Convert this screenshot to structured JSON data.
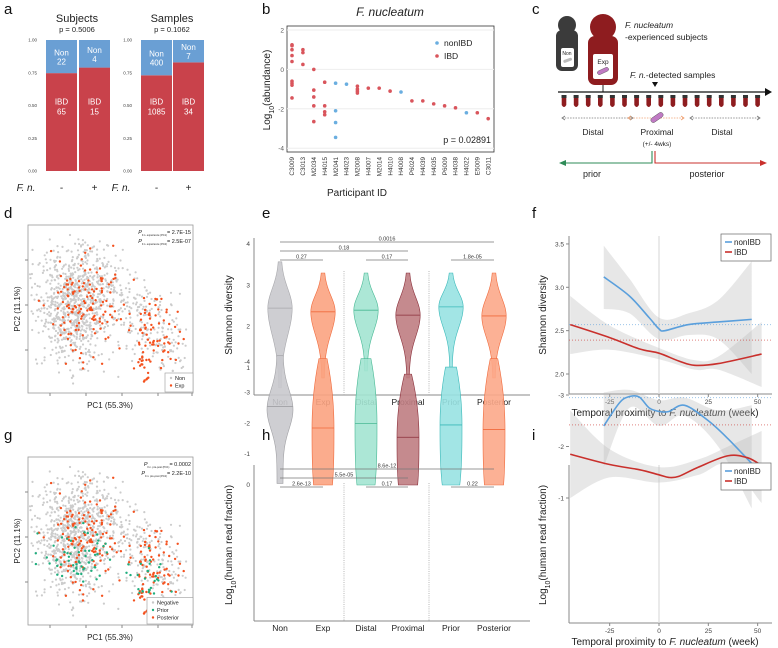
{
  "panel_labels": [
    "a",
    "b",
    "c",
    "d",
    "e",
    "f",
    "g",
    "h",
    "i"
  ],
  "chart_data": [
    {
      "panel": "a",
      "type": "bar",
      "stacked": true,
      "normalized": true,
      "yticks": [
        "0.00",
        "0.25",
        "0.50",
        "0.75",
        "1.00"
      ],
      "xlabel": "F. n.",
      "colors": {
        "Non": "#6a9fd4",
        "IBD": "#c9424b"
      },
      "groups": [
        {
          "title": "Subjects",
          "p": "p = 0.5006",
          "categories": [
            "-",
            "+"
          ],
          "series": [
            {
              "name": "Non",
              "values": [
                22,
                4
              ]
            },
            {
              "name": "IBD",
              "values": [
                65,
                15
              ]
            }
          ]
        },
        {
          "title": "Samples",
          "p": "p = 0.1062",
          "categories": [
            "-",
            "+"
          ],
          "series": [
            {
              "name": "Non",
              "values": [
                400,
                7
              ]
            },
            {
              "name": "IBD",
              "values": [
                1085,
                34
              ]
            }
          ]
        }
      ]
    },
    {
      "panel": "b",
      "type": "scatter",
      "title": "F. nucleatum",
      "xlabel": "Participant ID",
      "ylabel": "Log10(abundance)",
      "ylabel_base": "Log",
      "ylabel_sub": "10",
      "ylabel_rest": "(abundance)",
      "ylim": [
        -4.2,
        2.2
      ],
      "yticks": [
        "2",
        "0",
        "-2",
        "-4"
      ],
      "annotation": "p = 0.02891",
      "legend": [
        {
          "name": "nonIBD",
          "color": "#6aaee0"
        },
        {
          "name": "IBD",
          "color": "#d9555c"
        }
      ],
      "legend_position": "top-right",
      "categories": [
        "C3009",
        "C3013",
        "M2034",
        "H4015",
        "M2041",
        "H4023",
        "M2008",
        "H4007",
        "M2014",
        "H4010",
        "H4008",
        "P6024",
        "H4039",
        "H4035",
        "P6009",
        "H4038",
        "H4022",
        "E5009",
        "C3011"
      ],
      "points": [
        {
          "id": "C3009",
          "group": "IBD",
          "y": [
            1.25,
            1.2,
            1.0,
            0.7,
            0.4,
            -0.6,
            -0.7,
            -0.8,
            -1.45
          ]
        },
        {
          "id": "C3013",
          "group": "IBD",
          "y": [
            1.0,
            0.85,
            0.25
          ]
        },
        {
          "id": "M2034",
          "group": "IBD",
          "y": [
            0.0,
            -1.05,
            -1.4,
            -1.85,
            -2.65
          ]
        },
        {
          "id": "H4015",
          "group": "IBD",
          "y": [
            -0.65,
            -1.85,
            -2.15,
            -2.3
          ]
        },
        {
          "id": "M2041",
          "group": "nonIBD",
          "y": [
            -0.7,
            -2.1,
            -2.7,
            -3.45
          ]
        },
        {
          "id": "H4023",
          "group": "nonIBD",
          "y": [
            -0.75
          ]
        },
        {
          "id": "M2008",
          "group": "IBD",
          "y": [
            -0.85,
            -1.0,
            -1.1,
            -1.2
          ]
        },
        {
          "id": "H4007",
          "group": "IBD",
          "y": [
            -0.95
          ]
        },
        {
          "id": "M2014",
          "group": "IBD",
          "y": [
            -0.95
          ]
        },
        {
          "id": "H4010",
          "group": "IBD",
          "y": [
            -1.1
          ]
        },
        {
          "id": "H4008",
          "group": "nonIBD",
          "y": [
            -1.15
          ]
        },
        {
          "id": "P6024",
          "group": "IBD",
          "y": [
            -1.6
          ]
        },
        {
          "id": "H4039",
          "group": "IBD",
          "y": [
            -1.6
          ]
        },
        {
          "id": "H4035",
          "group": "IBD",
          "y": [
            -1.75
          ]
        },
        {
          "id": "P6009",
          "group": "IBD",
          "y": [
            -1.85
          ]
        },
        {
          "id": "H4038",
          "group": "IBD",
          "y": [
            -1.95
          ]
        },
        {
          "id": "H4022",
          "group": "nonIBD",
          "y": [
            -2.2
          ]
        },
        {
          "id": "E5009",
          "group": "IBD",
          "y": [
            -2.2
          ]
        },
        {
          "id": "C3011",
          "group": "IBD",
          "y": [
            -2.5
          ]
        }
      ]
    },
    {
      "panel": "d",
      "type": "scatter",
      "xlabel": "PC1 (55.3%)",
      "ylabel": "PC2 (11.1%)",
      "annotations": [
        {
          "p": "P",
          "sub": "F.n. experience (PC1)",
          "value": "= 2.7E-15"
        },
        {
          "p": "P",
          "sub": "F.n. experience (PC2)",
          "value": "= 2.5E-07"
        }
      ],
      "legend": [
        {
          "name": "Non",
          "color": "#c8c8c8"
        },
        {
          "name": "Exp",
          "color": "#f4511e"
        }
      ],
      "legend_position": "bottom-right"
    },
    {
      "panel": "e",
      "type": "violin",
      "ylabel": "Shannon diversity",
      "yticks": [
        "1",
        "2",
        "3",
        "4"
      ],
      "ylim": [
        0.4,
        4.1
      ],
      "categories": [
        "Non",
        "Exp",
        "Distal",
        "Proximal",
        "Prior",
        "Posterior"
      ],
      "violins": [
        {
          "name": "Non",
          "min": 0.52,
          "max": 3.57,
          "median": 2.45,
          "color": "#c9c9cd",
          "line": "#a8a8ac"
        },
        {
          "name": "Exp",
          "min": 0.76,
          "max": 3.3,
          "median": 2.36,
          "color": "#fba381",
          "line": "#f06a3c"
        },
        {
          "name": "Distal",
          "min": 0.93,
          "max": 3.3,
          "median": 2.4,
          "color": "#a3e4d1",
          "line": "#48b894"
        },
        {
          "name": "Proximal",
          "min": 0.76,
          "max": 3.3,
          "median": 2.28,
          "color": "#bf7d82",
          "line": "#8a2f3a"
        },
        {
          "name": "Prior",
          "min": 1.02,
          "max": 3.3,
          "median": 2.48,
          "color": "#98e2e2",
          "line": "#3ab9b9"
        },
        {
          "name": "Posterior",
          "min": 0.76,
          "max": 3.3,
          "median": 2.26,
          "color": "#fca88a",
          "line": "#f06a3c"
        }
      ],
      "comparisons": [
        {
          "from": "Non",
          "to": "Posterior",
          "label": "0.0016"
        },
        {
          "from": "Non",
          "to": "Proximal",
          "label": "0.18"
        },
        {
          "from": "Non",
          "to": "Exp",
          "label": "0.27"
        },
        {
          "from": "Distal",
          "to": "Proximal",
          "label": "0.17"
        },
        {
          "from": "Prior",
          "to": "Posterior",
          "label": "1.8e-05"
        }
      ]
    },
    {
      "panel": "f",
      "type": "line",
      "ylabel": "Shannon diversity",
      "xlabel_pre": "Temporal proximity to ",
      "xlabel_italic": "F. nucleatum",
      "xlabel_post": " (week)",
      "xticks": [
        -25,
        0,
        25,
        50
      ],
      "yticks": [
        2.0,
        2.5,
        3.0,
        3.5
      ],
      "ytick_labels": [
        "2.0",
        "2.5",
        "3.0",
        "3.5"
      ],
      "ylim": [
        1.9,
        3.6
      ],
      "xlim": [
        -48,
        56
      ],
      "legend_position": "top-right",
      "series": [
        {
          "name": "nonIBD",
          "color": "#5a9fdc",
          "reference": 2.57,
          "x": [
            -28,
            -15,
            -5,
            0,
            3,
            15,
            30,
            47
          ],
          "y": [
            3.12,
            2.9,
            2.65,
            2.52,
            2.5,
            2.57,
            2.6,
            2.63
          ],
          "band": {
            "x": [
              -28,
              -15,
              0,
              15,
              30,
              47
            ],
            "lo": [
              2.75,
              2.7,
              2.4,
              2.45,
              2.4,
              2.0
            ],
            "hi": [
              3.48,
              3.1,
              2.65,
              2.7,
              2.85,
              3.3
            ]
          }
        },
        {
          "name": "IBD",
          "color": "#c9302c",
          "reference": 2.39,
          "x": [
            -45,
            -25,
            -10,
            0,
            10,
            18,
            30,
            52
          ],
          "y": [
            2.57,
            2.42,
            2.29,
            2.24,
            2.15,
            2.1,
            2.12,
            2.23
          ],
          "band": {
            "x": [
              -45,
              -25,
              0,
              18,
              30,
              52
            ],
            "lo": [
              2.23,
              2.28,
              2.17,
              2.05,
              2.05,
              1.85
            ],
            "hi": [
              2.9,
              2.56,
              2.3,
              2.16,
              2.2,
              2.6
            ]
          }
        }
      ]
    },
    {
      "panel": "g",
      "type": "scatter",
      "xlabel": "PC1 (55.3%)",
      "ylabel": "PC2 (11.1%)",
      "annotations": [
        {
          "p": "P",
          "sub": "F.n. pre-post (PC1)",
          "value": "= 0.0002"
        },
        {
          "p": "P",
          "sub": "F.n. pre-post (PC2)",
          "value": "= 2.2E-10"
        }
      ],
      "legend": [
        {
          "name": "Negative",
          "color": "#c8c8c8"
        },
        {
          "name": "Prior",
          "color": "#1fae7e"
        },
        {
          "name": "Posterior",
          "color": "#f4511e"
        }
      ],
      "legend_position": "bottom-right"
    },
    {
      "panel": "h",
      "type": "violin",
      "ylabel_base": "Log",
      "ylabel_sub": "10",
      "ylabel_rest": "(human read fraction)",
      "yticks": [
        "0",
        "-1",
        "-2",
        "-3",
        "-4"
      ],
      "ylim": [
        -4.4,
        0.2
      ],
      "categories": [
        "Non",
        "Exp",
        "Distal",
        "Proximal",
        "Prior",
        "Posterior"
      ],
      "violins": [
        {
          "name": "Non",
          "min": -4.2,
          "max": -0.05,
          "median": -2.55,
          "color": "#c9c9cd",
          "line": "#a0a0a4"
        },
        {
          "name": "Exp",
          "min": -4.1,
          "max": 0.0,
          "median": -1.85,
          "color": "#fba381",
          "line": "#f06a3c"
        },
        {
          "name": "Distal",
          "min": -4.1,
          "max": 0.0,
          "median": -2.0,
          "color": "#a3e4d1",
          "line": "#48b894"
        },
        {
          "name": "Proximal",
          "min": -3.6,
          "max": 0.0,
          "median": -1.55,
          "color": "#bf7d82",
          "line": "#8a2f3a"
        },
        {
          "name": "Prior",
          "min": -3.83,
          "max": 0.0,
          "median": -1.95,
          "color": "#98e2e2",
          "line": "#3ab9b9"
        },
        {
          "name": "Posterior",
          "min": -4.1,
          "max": 0.0,
          "median": -1.8,
          "color": "#fca88a",
          "line": "#f06a3c"
        }
      ],
      "comparisons": [
        {
          "from": "Non",
          "to": "Posterior",
          "label": "8.6e-12"
        },
        {
          "from": "Non",
          "to": "Proximal",
          "label": "5.5e-05"
        },
        {
          "from": "Non",
          "to": "Exp",
          "label": "2.6e-13"
        },
        {
          "from": "Distal",
          "to": "Proximal",
          "label": "0.17"
        },
        {
          "from": "Prior",
          "to": "Posterior",
          "label": "0.22"
        }
      ]
    },
    {
      "panel": "i",
      "type": "line",
      "ylabel_base": "Log",
      "ylabel_sub": "10",
      "ylabel_rest": "(human read fraction)",
      "xlabel_pre": "Temporal proximity to ",
      "xlabel_italic": "F. nucleatum",
      "xlabel_post": " (week)",
      "xticks": [
        -25,
        0,
        25,
        50
      ],
      "yticks": [
        -1,
        -2,
        -3
      ],
      "ytick_labels": [
        "-1",
        "-2",
        "-3"
      ],
      "ylim": [
        -3.4,
        -0.4
      ],
      "xlim": [
        -48,
        56
      ],
      "legend_position": "top-right",
      "series": [
        {
          "name": "nonIBD",
          "color": "#5a9fdc",
          "reference": -2.95,
          "x": [
            -28,
            -20,
            -15,
            -10,
            -5,
            0,
            5,
            13,
            25,
            35,
            47
          ],
          "y": [
            -2.4,
            -2.85,
            -2.97,
            -2.96,
            -2.75,
            -2.68,
            -2.68,
            -2.8,
            -2.5,
            -2.15,
            -1.67
          ],
          "band": {
            "x": [
              -28,
              -15,
              0,
              13,
              30,
              47
            ],
            "lo": [
              -3.05,
              -3.1,
              -2.9,
              -2.95,
              -2.7,
              -2.8
            ],
            "hi": [
              -1.6,
              -2.75,
              -2.4,
              -2.6,
              -2.0,
              -0.8
            ]
          }
        },
        {
          "name": "IBD",
          "color": "#c9302c",
          "reference": -2.42,
          "x": [
            -45,
            -25,
            -10,
            0,
            5,
            10,
            20,
            35,
            45,
            52
          ],
          "y": [
            -1.85,
            -1.65,
            -1.55,
            -1.45,
            -1.4,
            -1.42,
            -1.6,
            -1.82,
            -1.78,
            -1.63
          ],
          "band": {
            "x": [
              -45,
              -25,
              0,
              20,
              35,
              52
            ],
            "lo": [
              -2.7,
              -1.95,
              -1.6,
              -1.75,
              -2.0,
              -2.3
            ],
            "hi": [
              -1.0,
              -1.4,
              -1.3,
              -1.45,
              -1.65,
              -0.9
            ]
          }
        }
      ]
    }
  ],
  "diagram_c": {
    "non_label": "Non",
    "exp_label": "Exp",
    "title_italic": "F. nucleatum",
    "title_rest": "-experienced subjects",
    "detected_italic": "F. n.",
    "detected_rest": "-detected samples",
    "distal_left": "Distal",
    "proximal": "Proximal",
    "proximal_window": "(+/- 4wks)",
    "distal_right": "Distal",
    "prior": "prior",
    "posterior": "posterior",
    "colors": {
      "non": "#3b3b3b",
      "exp": "#8e1c1f",
      "bacterium": "#c07ac4",
      "prior": "#2e8b57",
      "posterior": "#c9302c",
      "proximal": "#f0a070"
    }
  }
}
